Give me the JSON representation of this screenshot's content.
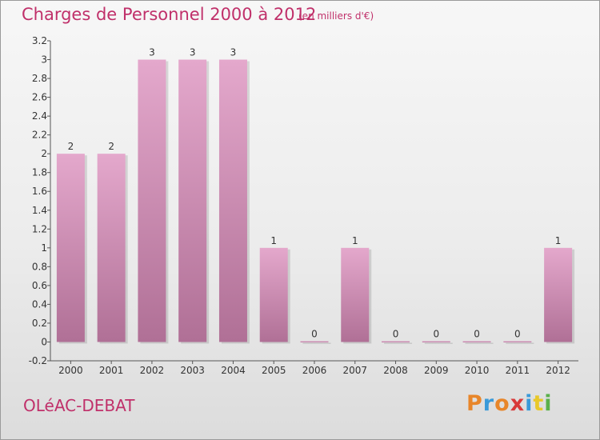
{
  "title": "Charges de Personnel 2000 à 2012",
  "subtitle": "(en milliers d'€)",
  "commune": "OLéAC-DEBAT",
  "logo": {
    "letters": [
      "P",
      "r",
      "o",
      "x",
      "i",
      "t",
      "i"
    ],
    "colors": [
      "#e8862a",
      "#3a9ad9",
      "#e8862a",
      "#d83a3a",
      "#3a9ad9",
      "#e8c82a",
      "#5ab04a"
    ]
  },
  "colors": {
    "bar_top": "#e4a8cc",
    "bar_bottom": "#b07096",
    "accent": "#c0306a"
  },
  "chart_data": {
    "type": "bar",
    "categories": [
      "2000",
      "2001",
      "2002",
      "2003",
      "2004",
      "2005",
      "2006",
      "2007",
      "2008",
      "2009",
      "2010",
      "2011",
      "2012"
    ],
    "values": [
      2,
      2,
      3,
      3,
      3,
      1,
      0,
      1,
      0,
      0,
      0,
      0,
      1
    ],
    "value_labels": [
      "2",
      "2",
      "3",
      "3",
      "3",
      "1",
      "0",
      "1",
      "0",
      "0",
      "0",
      "0",
      "1"
    ],
    "ylim": [
      -0.2,
      3.2
    ],
    "yticks": [
      "3.2",
      "3",
      "2.8",
      "2.6",
      "2.4",
      "2.2",
      "2",
      "1.8",
      "1.6",
      "1.4",
      "1.2",
      "1",
      "0.8",
      "0.6",
      "0.4",
      "0.2",
      "0",
      "-0.2"
    ],
    "ytick_values": [
      3.2,
      3,
      2.8,
      2.6,
      2.4,
      2.2,
      2,
      1.8,
      1.6,
      1.4,
      1.2,
      1,
      0.8,
      0.6,
      0.4,
      0.2,
      0,
      -0.2
    ],
    "grid": false,
    "xlabel": "",
    "ylabel": ""
  }
}
